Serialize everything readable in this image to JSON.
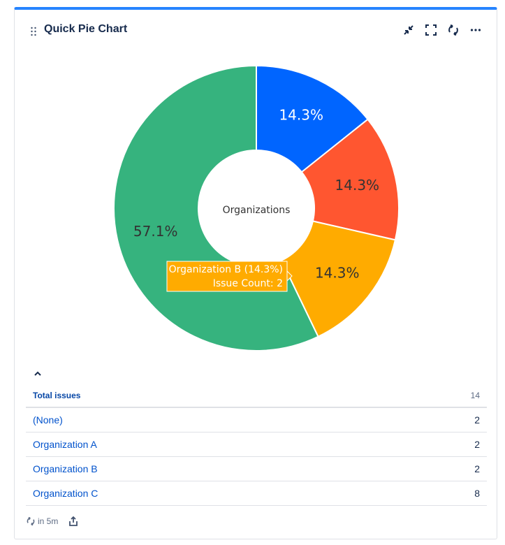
{
  "gadget": {
    "title": "Quick Pie Chart",
    "accent_color": "#2684ff"
  },
  "header_icons": [
    "minimize-icon",
    "fullscreen-icon",
    "refresh-icon",
    "more-icon"
  ],
  "chart_data": {
    "type": "pie",
    "style": "donut",
    "center_label": "Organizations",
    "slices": [
      {
        "name": "(None)",
        "value": 2,
        "label": "14.3%",
        "color": "#0065ff"
      },
      {
        "name": "Organization A",
        "value": 2,
        "label": "14.3%",
        "color": "#ff5630"
      },
      {
        "name": "Organization B",
        "value": 2,
        "label": "14.3%",
        "color": "#ffab00"
      },
      {
        "name": "Organization C",
        "value": 8,
        "label": "57.1%",
        "color": "#36b37e"
      }
    ],
    "tooltip": {
      "line1": "Organization B (14.3%)",
      "line2": "Issue Count: 2",
      "color": "#ffab00"
    }
  },
  "table": {
    "header_label": "Total issues",
    "header_value": "14",
    "rows": [
      {
        "label": "(None)",
        "value": "2"
      },
      {
        "label": "Organization A",
        "value": "2"
      },
      {
        "label": "Organization B",
        "value": "2"
      },
      {
        "label": "Organization C",
        "value": "8"
      }
    ]
  },
  "footer": {
    "refresh_text": "in 5m"
  }
}
